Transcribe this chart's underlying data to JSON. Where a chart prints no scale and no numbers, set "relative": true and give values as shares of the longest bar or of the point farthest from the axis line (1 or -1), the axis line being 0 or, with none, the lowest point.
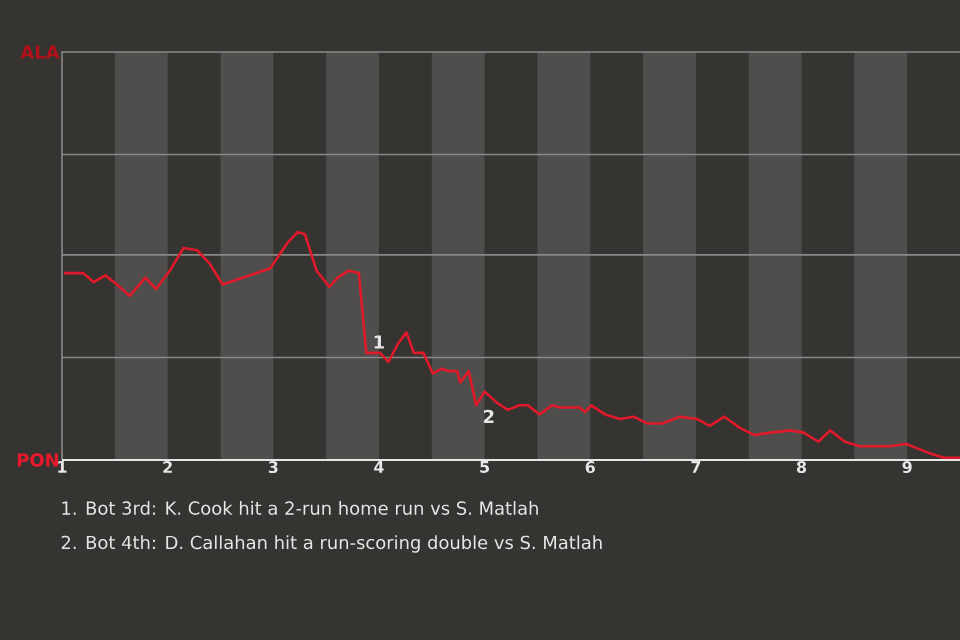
{
  "chart_data": {
    "type": "line",
    "relative": true,
    "ref_lines": [
      {
        "axis": "y",
        "value": 0.45,
        "color": "#8a8987"
      },
      {
        "axis": "y",
        "value": 0.9,
        "color": "#8a8987"
      },
      {
        "axis": "y",
        "value": 1.34,
        "color": "#8a8987"
      }
    ],
    "annotations": [
      "ALA",
      "PON",
      {
        "text": "1",
        "x": 3.88,
        "y": 0.47
      },
      {
        "text": "2",
        "x": 4.92,
        "y": 0.24
      },
      "1. Bot 3rd: K. Cook hit a 2-run home run vs S. Matlah",
      "2. Bot 4th: D. Callahan hit a run-scoring double vs S. Matlah"
    ],
    "xlim": [
      1,
      9.5
    ],
    "xticks": [
      1,
      2,
      3,
      4,
      5,
      6,
      7,
      8,
      9
    ],
    "bands": [
      {
        "axis": "x",
        "from": 1.5,
        "to": 2,
        "color": "#4f4e4c"
      },
      {
        "axis": "x",
        "from": 2.5,
        "to": 3,
        "color": "#4f4e4c"
      },
      {
        "axis": "x",
        "from": 3.5,
        "to": 4,
        "color": "#4f4e4c"
      },
      {
        "axis": "x",
        "from": 4.5,
        "to": 5,
        "color": "#4f4e4c"
      },
      {
        "axis": "x",
        "from": 5.5,
        "to": 6,
        "color": "#4f4e4c"
      },
      {
        "axis": "x",
        "from": 6.5,
        "to": 7,
        "color": "#4f4e4c"
      },
      {
        "axis": "x",
        "from": 7.5,
        "to": 8,
        "color": "#4f4e4c"
      },
      {
        "axis": "x",
        "from": 8.5,
        "to": 9,
        "color": "#4f4e4c"
      }
    ],
    "series": [
      {
        "color": "#e01a2b",
        "x": [
          1.02,
          1.2,
          1.3,
          1.41,
          1.52,
          1.64,
          1.79,
          1.89,
          2.02,
          2.15,
          2.28,
          2.4,
          2.52,
          2.71,
          2.97,
          3.13,
          3.23,
          3.3,
          3.41,
          3.53,
          3.61,
          3.71,
          3.81,
          3.88,
          4.01,
          4.09,
          4.18,
          4.26,
          4.33,
          4.42,
          4.51,
          4.59,
          4.66,
          4.74,
          4.77,
          4.85,
          4.92,
          5.0,
          5.12,
          5.22,
          5.33,
          5.41,
          5.52,
          5.58,
          5.64,
          5.71,
          5.9,
          5.95,
          6.01,
          6.14,
          6.28,
          6.41,
          6.54,
          6.68,
          6.85,
          7.01,
          7.13,
          7.27,
          7.42,
          7.55,
          7.71,
          7.89,
          8.02,
          8.16,
          8.27,
          8.41,
          8.55,
          8.83,
          8.99,
          9.21,
          9.35,
          9.5
        ],
        "values": [
          0.82,
          0.82,
          0.78,
          0.81,
          0.77,
          0.72,
          0.8,
          0.75,
          0.83,
          0.93,
          0.92,
          0.86,
          0.77,
          0.8,
          0.84,
          0.95,
          1.0,
          0.99,
          0.83,
          0.76,
          0.8,
          0.83,
          0.82,
          0.47,
          0.47,
          0.43,
          0.51,
          0.56,
          0.47,
          0.47,
          0.38,
          0.4,
          0.39,
          0.39,
          0.34,
          0.39,
          0.24,
          0.3,
          0.25,
          0.22,
          0.24,
          0.24,
          0.2,
          0.22,
          0.24,
          0.23,
          0.23,
          0.21,
          0.24,
          0.2,
          0.18,
          0.19,
          0.16,
          0.16,
          0.19,
          0.18,
          0.15,
          0.19,
          0.14,
          0.11,
          0.12,
          0.13,
          0.12,
          0.08,
          0.13,
          0.08,
          0.06,
          0.06,
          0.07,
          0.03,
          0.01,
          0.01
        ]
      }
    ]
  }
}
